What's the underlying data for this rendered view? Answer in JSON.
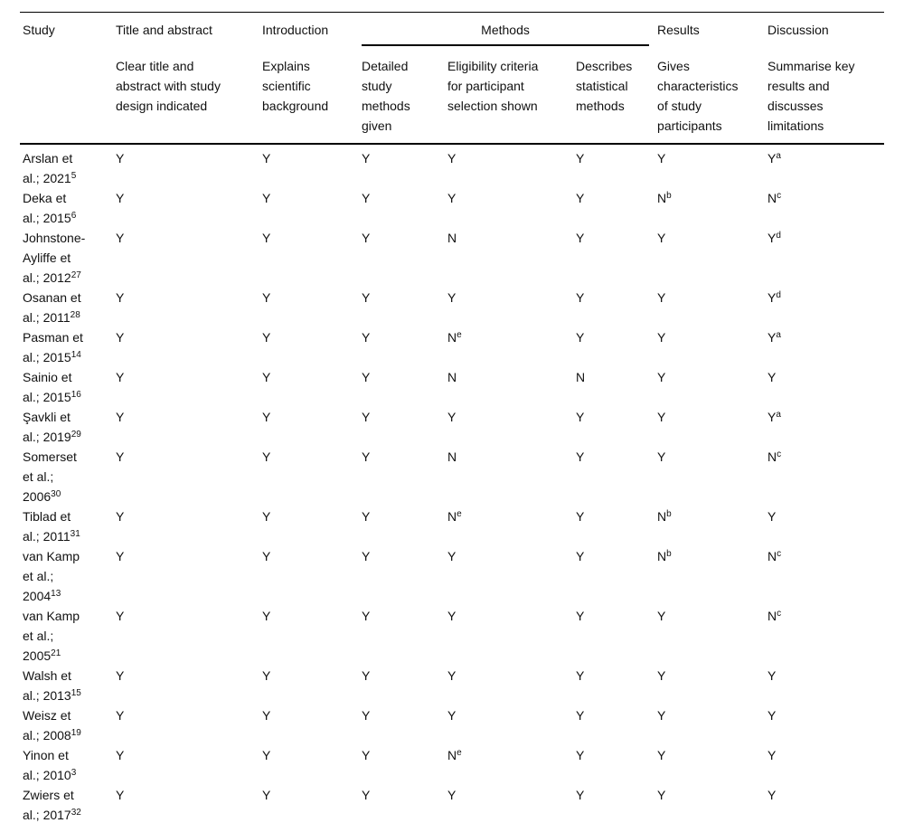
{
  "table": {
    "text_color": "#111111",
    "rule_color": "#000000",
    "header": {
      "study": "Study",
      "title_abstract": {
        "label": "Title and abstract",
        "sub": "Clear title and\nabstract with study\ndesign indicated"
      },
      "introduction": {
        "label": "Introduction",
        "sub": "Explains\nscientific\nbackground"
      },
      "methods": {
        "label": "Methods",
        "subs": [
          "Detailed\nstudy\nmethods\ngiven",
          "Eligibility criteria\nfor participant\nselection shown",
          "Describes\nstatistical\nmethods"
        ]
      },
      "results": {
        "label": "Results",
        "sub": "Gives\ncharacteristics\nof study\nparticipants"
      },
      "discussion": {
        "label": "Discussion",
        "sub": "Summarise key\nresults and\ndiscusses\nlimitations"
      }
    },
    "value_column_ids": [
      "title-abstract",
      "introduction",
      "methods-detailed",
      "methods-eligibility",
      "methods-statistics",
      "results",
      "discussion"
    ],
    "rows": [
      {
        "study": "Arslan et\nal.; 2021^5",
        "values": [
          "Y",
          "Y",
          "Y",
          "Y",
          "Y",
          "Y",
          "Y^a"
        ]
      },
      {
        "study": "Deka et\nal.; 2015^6",
        "values": [
          "Y",
          "Y",
          "Y",
          "Y",
          "Y",
          "N^b",
          "N^c"
        ]
      },
      {
        "study": "Johnstone-\nAyliffe et\nal.; 2012^27",
        "values": [
          "Y",
          "Y",
          "Y",
          "N",
          "Y",
          "Y",
          "Y^d"
        ]
      },
      {
        "study": "Osanan et\nal.; 2011^28",
        "values": [
          "Y",
          "Y",
          "Y",
          "Y",
          "Y",
          "Y",
          "Y^d"
        ]
      },
      {
        "study": "Pasman et\nal.; 2015^14",
        "values": [
          "Y",
          "Y",
          "Y",
          "N^e",
          "Y",
          "Y",
          "Y^a"
        ]
      },
      {
        "study": "Sainio et\nal.; 2015^16",
        "values": [
          "Y",
          "Y",
          "Y",
          "N",
          "N",
          "Y",
          "Y"
        ]
      },
      {
        "study": "Şavkli et\nal.; 2019^29",
        "values": [
          "Y",
          "Y",
          "Y",
          "Y",
          "Y",
          "Y",
          "Y^a"
        ]
      },
      {
        "study": "Somerset\net al.;\n2006^30",
        "values": [
          "Y",
          "Y",
          "Y",
          "N",
          "Y",
          "Y",
          "N^c"
        ]
      },
      {
        "study": "Tiblad et\nal.; 2011^31",
        "values": [
          "Y",
          "Y",
          "Y",
          "N^e",
          "Y",
          "N^b",
          "Y"
        ]
      },
      {
        "study": "van Kamp\net al.;\n2004^13",
        "values": [
          "Y",
          "Y",
          "Y",
          "Y",
          "Y",
          "N^b",
          "N^c"
        ]
      },
      {
        "study": "van Kamp\net al.;\n2005^21",
        "values": [
          "Y",
          "Y",
          "Y",
          "Y",
          "Y",
          "Y",
          "N^c"
        ]
      },
      {
        "study": "Walsh et\nal.; 2013^15",
        "values": [
          "Y",
          "Y",
          "Y",
          "Y",
          "Y",
          "Y",
          "Y"
        ]
      },
      {
        "study": "Weisz et\nal.; 2008^19",
        "values": [
          "Y",
          "Y",
          "Y",
          "Y",
          "Y",
          "Y",
          "Y"
        ]
      },
      {
        "study": "Yinon et\nal.; 2010^3",
        "values": [
          "Y",
          "Y",
          "Y",
          "N^e",
          "Y",
          "Y",
          "Y"
        ]
      },
      {
        "study": "Zwiers et\nal.; 2017^32",
        "values": [
          "Y",
          "Y",
          "Y",
          "Y",
          "Y",
          "Y",
          "Y"
        ]
      }
    ]
  }
}
